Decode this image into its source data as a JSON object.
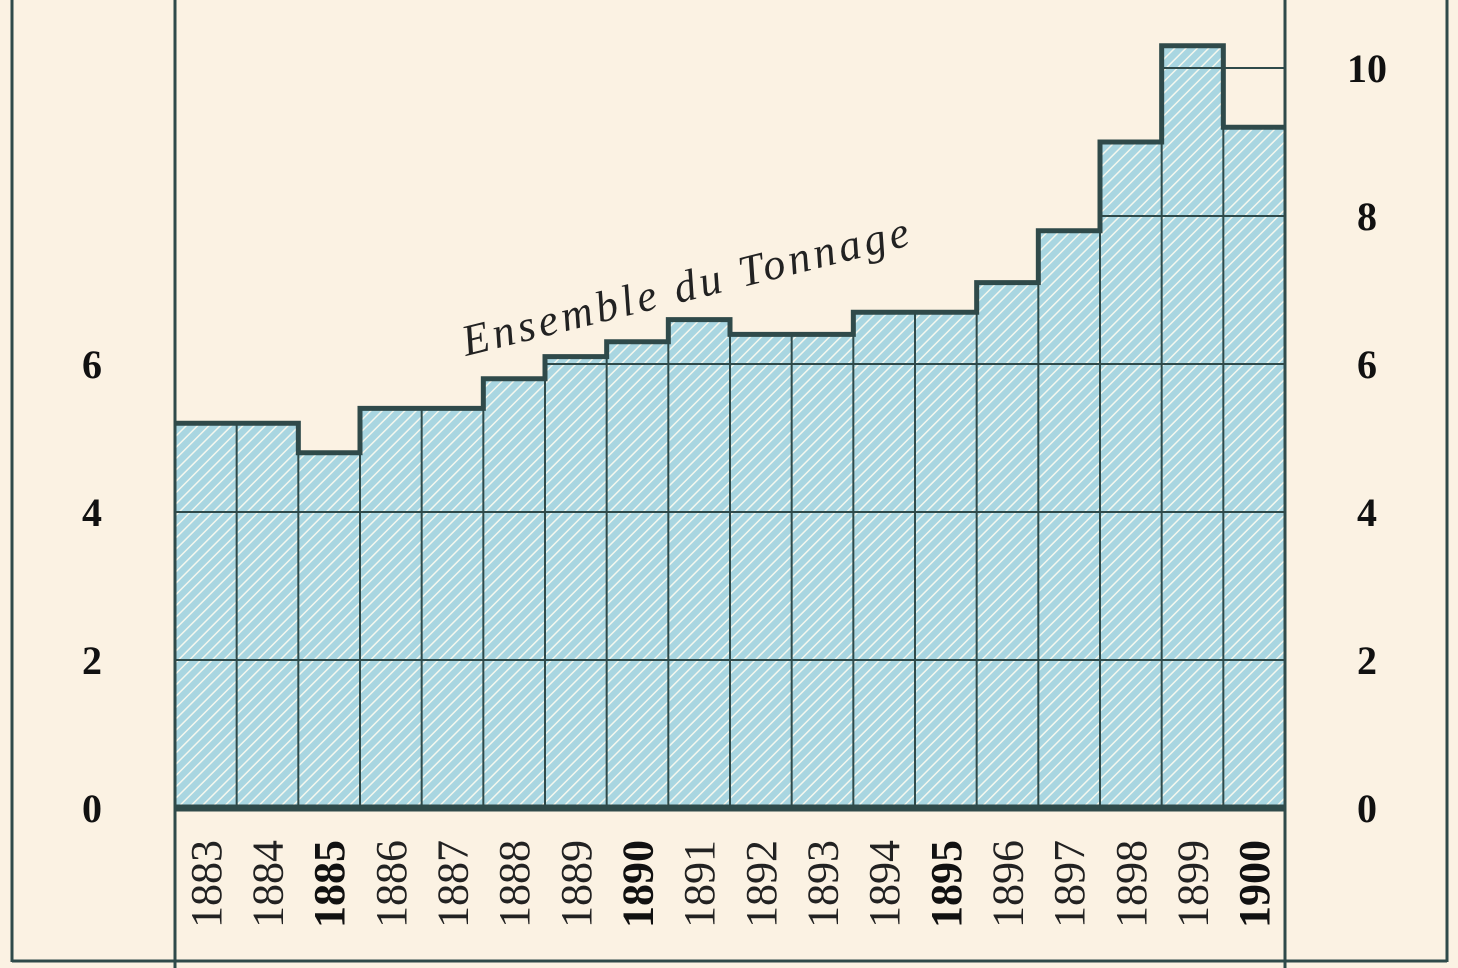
{
  "chart_data": {
    "type": "bar",
    "title": "",
    "xlabel": "",
    "ylabel": "",
    "curve_label": "Ensemble du Tonnage",
    "categories": [
      "1883",
      "1884",
      "1885",
      "1886",
      "1887",
      "1888",
      "1889",
      "1890",
      "1891",
      "1892",
      "1893",
      "1894",
      "1895",
      "1896",
      "1897",
      "1898",
      "1899",
      "1900"
    ],
    "bold_categories": [
      "1885",
      "1890",
      "1895",
      "1900"
    ],
    "series": [
      {
        "values": [
          5.2,
          5.2,
          4.8,
          5.4,
          5.4,
          5.8,
          6.1,
          6.3,
          6.6,
          6.4,
          6.4,
          6.7,
          6.7,
          7.1,
          7.8,
          9.0,
          10.3,
          9.2
        ]
      }
    ],
    "ylim": [
      0,
      11
    ],
    "left_ticks": [
      "0",
      "2",
      "4",
      "6"
    ],
    "right_ticks": [
      "0",
      "2",
      "4",
      "6",
      "8",
      "10"
    ],
    "grid": true,
    "colors": {
      "background": "#fbf2e3",
      "bar_fill": "#a9d6e1",
      "hatch": "#ffffff",
      "outline": "#2f4a4a"
    }
  }
}
